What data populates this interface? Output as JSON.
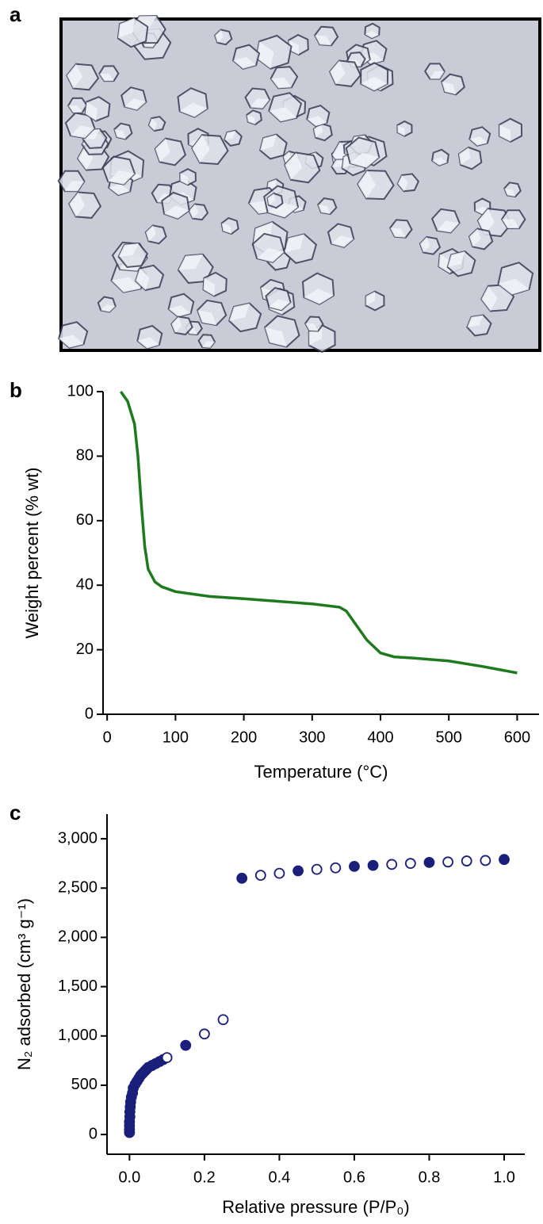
{
  "panel_labels": [
    "a",
    "b",
    "c"
  ],
  "chart_data": [
    {
      "type": "line",
      "xlabel": "Temperature (°C)",
      "ylabel": "Weight percent (% wt)",
      "xlim": [
        -6,
        632
      ],
      "ylim": [
        0,
        100
      ],
      "xticks": [
        0,
        100,
        200,
        300,
        400,
        500,
        600
      ],
      "yticks": [
        0,
        20,
        40,
        60,
        80,
        100
      ],
      "series": [
        {
          "color": "#1f7a1f",
          "x": [
            20,
            30,
            40,
            45,
            50,
            55,
            60,
            70,
            80,
            100,
            150,
            200,
            250,
            300,
            340,
            350,
            360,
            380,
            400,
            420,
            450,
            500,
            550,
            600
          ],
          "values": [
            100,
            97,
            90,
            80,
            65,
            52,
            45,
            41,
            39.5,
            38,
            36.5,
            35.8,
            35,
            34.2,
            33.2,
            32,
            29,
            23,
            19,
            17.8,
            17.4,
            16.5,
            14.8,
            12.8
          ]
        }
      ]
    },
    {
      "type": "scatter",
      "xlabel": "Relative pressure (P/P₀)",
      "ylabel": "N₂ adsorbed (cm³ g⁻¹)",
      "xlim": [
        -0.06,
        1.055
      ],
      "ylim": [
        -200,
        3250
      ],
      "xticks": [
        {
          "value": 0,
          "label": "0.0"
        },
        {
          "value": 0.2,
          "label": "0.2"
        },
        {
          "value": 0.4,
          "label": "0.4"
        },
        {
          "value": 0.6,
          "label": "0.6"
        },
        {
          "value": 0.8,
          "label": "0.8"
        },
        {
          "value": 1,
          "label": "1.0"
        }
      ],
      "yticks": [
        0,
        500,
        {
          "value": 1000,
          "label": "1,000"
        },
        {
          "value": 1500,
          "label": "1,500"
        },
        {
          "value": 2000,
          "label": "2,000"
        },
        {
          "value": 2500,
          "label": "2,500"
        },
        {
          "value": 3000,
          "label": "3,000"
        }
      ],
      "series": [
        {
          "color": "#1a1f7a",
          "marker": "filled",
          "x": [
            0,
            0,
            0,
            0,
            0.001,
            0.001,
            0.002,
            0.003,
            0.005,
            0.008,
            0.01,
            0.015,
            0.02,
            0.025,
            0.03,
            0.035,
            0.04,
            0.045,
            0.05,
            0.06,
            0.07,
            0.08,
            0.09,
            0.15,
            0.3,
            0.45,
            0.6,
            0.65,
            0.8,
            1.0
          ],
          "values": [
            20,
            50,
            90,
            130,
            180,
            230,
            280,
            330,
            380,
            420,
            470,
            510,
            540,
            570,
            600,
            620,
            640,
            660,
            680,
            700,
            720,
            740,
            760,
            905,
            2600,
            2675,
            2720,
            2730,
            2760,
            2790
          ]
        },
        {
          "color": "#1a1f7a",
          "marker": "open",
          "x": [
            0.1,
            0.2,
            0.25,
            0.35,
            0.4,
            0.5,
            0.55,
            0.7,
            0.75,
            0.85,
            0.9,
            0.95
          ],
          "values": [
            780,
            1020,
            1165,
            2630,
            2650,
            2690,
            2705,
            2740,
            2750,
            2765,
            2775,
            2780
          ]
        }
      ]
    }
  ]
}
